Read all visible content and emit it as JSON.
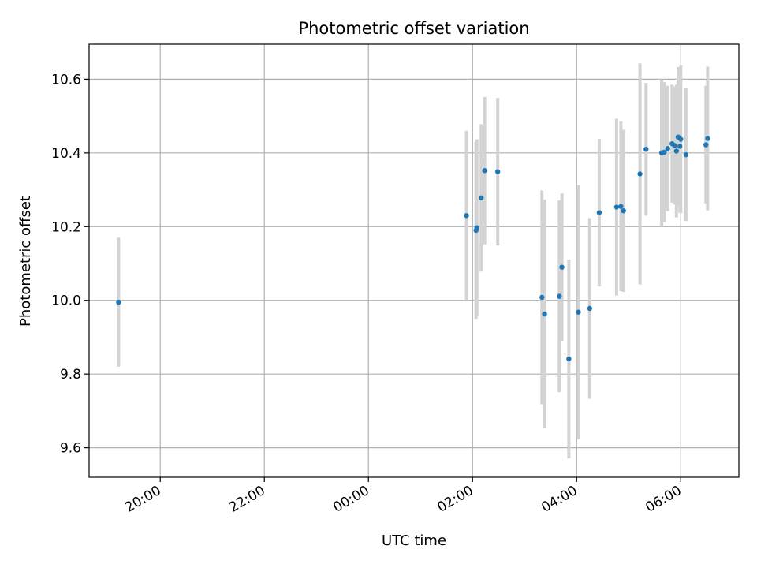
{
  "chart_data": {
    "type": "scatter",
    "title": "Photometric offset variation",
    "xlabel": "UTC time",
    "ylabel": "Photometric offset",
    "x_axis_kind": "time",
    "xlim": [
      "18:38",
      "07:07"
    ],
    "ylim": [
      9.52,
      10.695
    ],
    "x_ticks": [
      "20:00",
      "22:00",
      "00:00",
      "02:00",
      "04:00",
      "06:00"
    ],
    "y_ticks": [
      9.6,
      9.8,
      10.0,
      10.2,
      10.4,
      10.6
    ],
    "grid": true,
    "legend": "none",
    "colors": {
      "point": "#1f77b4",
      "errorbar": "#d3d3d3",
      "grid": "#b0b0b0"
    },
    "points": [
      {
        "x": "19:12",
        "y": 9.995,
        "yerr": 0.175
      },
      {
        "x": "01:53",
        "y": 10.23,
        "yerr": 0.23
      },
      {
        "x": "02:04",
        "y": 10.19,
        "yerr": 0.24
      },
      {
        "x": "02:05",
        "y": 10.197,
        "yerr": 0.24
      },
      {
        "x": "02:10",
        "y": 10.278,
        "yerr": 0.2
      },
      {
        "x": "02:14",
        "y": 10.352,
        "yerr": 0.2
      },
      {
        "x": "02:29",
        "y": 10.349,
        "yerr": 0.2
      },
      {
        "x": "03:20",
        "y": 10.008,
        "yerr": 0.29
      },
      {
        "x": "03:23",
        "y": 9.963,
        "yerr": 0.31
      },
      {
        "x": "03:40",
        "y": 10.011,
        "yerr": 0.26
      },
      {
        "x": "03:43",
        "y": 10.09,
        "yerr": 0.2
      },
      {
        "x": "03:51",
        "y": 9.841,
        "yerr": 0.27
      },
      {
        "x": "04:02",
        "y": 9.968,
        "yerr": 0.345
      },
      {
        "x": "04:15",
        "y": 9.978,
        "yerr": 0.245
      },
      {
        "x": "04:26",
        "y": 10.238,
        "yerr": 0.2
      },
      {
        "x": "04:46",
        "y": 10.253,
        "yerr": 0.24
      },
      {
        "x": "04:51",
        "y": 10.255,
        "yerr": 0.23
      },
      {
        "x": "04:54",
        "y": 10.243,
        "yerr": 0.22
      },
      {
        "x": "05:13",
        "y": 10.343,
        "yerr": 0.3
      },
      {
        "x": "05:20",
        "y": 10.41,
        "yerr": 0.18
      },
      {
        "x": "05:38",
        "y": 10.4,
        "yerr": 0.2
      },
      {
        "x": "05:41",
        "y": 10.402,
        "yerr": 0.19
      },
      {
        "x": "05:45",
        "y": 10.412,
        "yerr": 0.17
      },
      {
        "x": "05:50",
        "y": 10.425,
        "yerr": 0.16
      },
      {
        "x": "05:53",
        "y": 10.42,
        "yerr": 0.16
      },
      {
        "x": "05:55",
        "y": 10.405,
        "yerr": 0.18
      },
      {
        "x": "05:57",
        "y": 10.443,
        "yerr": 0.19
      },
      {
        "x": "05:59",
        "y": 10.418,
        "yerr": 0.18
      },
      {
        "x": "06:00",
        "y": 10.437,
        "yerr": 0.2
      },
      {
        "x": "06:06",
        "y": 10.395,
        "yerr": 0.18
      },
      {
        "x": "06:29",
        "y": 10.422,
        "yerr": 0.16
      },
      {
        "x": "06:31",
        "y": 10.439,
        "yerr": 0.195
      }
    ]
  }
}
